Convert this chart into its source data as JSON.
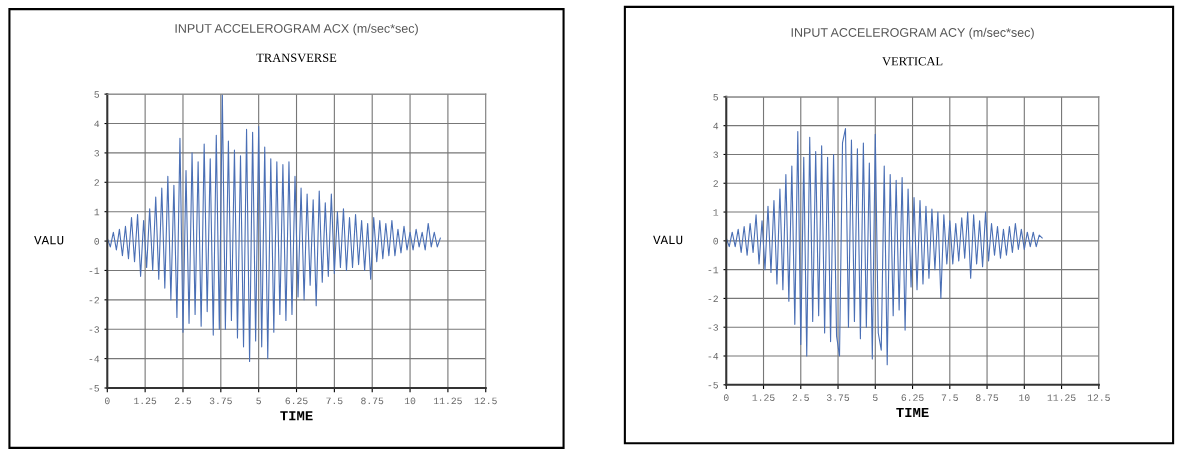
{
  "chart_data": [
    {
      "type": "line",
      "title": "INPUT ACCELEROGRAM ACX (m/sec*sec)",
      "subtitle": "TRANSVERSE",
      "xlabel": "TIME",
      "ylabel": "VALU",
      "xlim": [
        0,
        12.5
      ],
      "xticks": [
        0,
        1.25,
        2.5,
        3.75,
        5,
        6.25,
        7.5,
        8.75,
        10,
        11.25,
        12.5
      ],
      "ylim": [
        -5,
        5
      ],
      "yticks": [
        -5,
        -4,
        -3,
        -2,
        -1,
        0,
        1,
        2,
        3,
        4,
        5
      ],
      "grid": true,
      "marker": "none",
      "line_style": "solid",
      "x": [
        0.0,
        0.1,
        0.2,
        0.3,
        0.4,
        0.5,
        0.6,
        0.7,
        0.8,
        0.9,
        1.0,
        1.1,
        1.2,
        1.3,
        1.4,
        1.5,
        1.6,
        1.7,
        1.8,
        1.9,
        2.0,
        2.1,
        2.2,
        2.3,
        2.4,
        2.5,
        2.6,
        2.7,
        2.8,
        2.9,
        3.0,
        3.1,
        3.2,
        3.3,
        3.4,
        3.5,
        3.6,
        3.7,
        3.8,
        3.9,
        4.0,
        4.1,
        4.2,
        4.3,
        4.4,
        4.5,
        4.6,
        4.7,
        4.8,
        4.9,
        5.0,
        5.1,
        5.2,
        5.3,
        5.4,
        5.5,
        5.6,
        5.7,
        5.8,
        5.9,
        6.0,
        6.1,
        6.2,
        6.3,
        6.4,
        6.5,
        6.6,
        6.7,
        6.8,
        6.9,
        7.0,
        7.1,
        7.2,
        7.3,
        7.4,
        7.5,
        7.6,
        7.7,
        7.8,
        7.9,
        8.0,
        8.1,
        8.2,
        8.3,
        8.4,
        8.5,
        8.6,
        8.7,
        8.8,
        8.9,
        9.0,
        9.1,
        9.2,
        9.3,
        9.4,
        9.5,
        9.6,
        9.7,
        9.8,
        9.9,
        10.0,
        10.1,
        10.2,
        10.3,
        10.4,
        10.5,
        10.6,
        10.7,
        10.8,
        10.9,
        11.0
      ],
      "series": [
        {
          "color": "#4a6fb5",
          "values": [
            0.1,
            -0.2,
            0.3,
            -0.3,
            0.4,
            -0.5,
            0.5,
            -0.6,
            0.8,
            -0.7,
            0.9,
            -1.2,
            0.7,
            -0.9,
            1.1,
            -1.0,
            1.5,
            -1.3,
            1.8,
            -1.6,
            2.2,
            -2.0,
            1.9,
            -2.6,
            3.5,
            -3.1,
            2.4,
            -2.8,
            3.0,
            -2.5,
            2.7,
            -2.9,
            3.3,
            -2.4,
            2.8,
            -3.2,
            3.6,
            -3.0,
            5.0,
            -3.0,
            3.4,
            -2.7,
            3.1,
            -3.3,
            2.9,
            -3.6,
            3.8,
            -4.1,
            3.7,
            -3.4,
            3.9,
            -3.6,
            3.2,
            -4.0,
            2.8,
            -3.1,
            2.7,
            -2.5,
            2.6,
            -2.7,
            2.7,
            -2.5,
            2.2,
            -1.9,
            1.8,
            -2.0,
            1.6,
            -1.5,
            1.4,
            -2.2,
            1.7,
            -1.4,
            1.3,
            -1.2,
            1.6,
            -1.1,
            1.0,
            -0.9,
            1.1,
            -1.0,
            0.8,
            -0.9,
            0.9,
            -0.8,
            0.7,
            -1.0,
            0.6,
            -1.3,
            0.8,
            -0.7,
            0.7,
            -0.6,
            0.6,
            -0.5,
            0.7,
            -0.5,
            0.4,
            -0.4,
            0.5,
            -0.3,
            0.3,
            -0.3,
            0.4,
            -0.2,
            0.3,
            -0.3,
            0.6,
            -0.2,
            0.3,
            -0.2,
            0.1
          ]
        }
      ]
    },
    {
      "type": "line",
      "title": "INPUT ACCELEROGRAM ACY (m/sec*sec)",
      "subtitle": "VERTICAL",
      "xlabel": "TIME",
      "ylabel": "VALU",
      "xlim": [
        0,
        12.5
      ],
      "xticks": [
        0,
        1.25,
        2.5,
        3.75,
        5,
        6.25,
        7.5,
        8.75,
        10,
        11.25,
        12.5
      ],
      "ylim": [
        -5,
        5
      ],
      "yticks": [
        -5,
        -4,
        -3,
        -2,
        -1,
        0,
        1,
        2,
        3,
        4,
        5
      ],
      "grid": true,
      "marker": "none",
      "line_style": "solid",
      "x": [
        0.0,
        0.1,
        0.2,
        0.3,
        0.4,
        0.5,
        0.6,
        0.7,
        0.8,
        0.9,
        1.0,
        1.1,
        1.2,
        1.3,
        1.4,
        1.5,
        1.6,
        1.7,
        1.8,
        1.9,
        2.0,
        2.1,
        2.2,
        2.3,
        2.4,
        2.5,
        2.6,
        2.7,
        2.8,
        2.9,
        3.0,
        3.1,
        3.2,
        3.3,
        3.4,
        3.5,
        3.6,
        3.7,
        3.8,
        3.9,
        4.0,
        4.1,
        4.2,
        4.3,
        4.4,
        4.5,
        4.6,
        4.7,
        4.8,
        4.9,
        5.0,
        5.1,
        5.2,
        5.3,
        5.4,
        5.5,
        5.6,
        5.7,
        5.8,
        5.9,
        6.0,
        6.1,
        6.2,
        6.3,
        6.4,
        6.5,
        6.6,
        6.7,
        6.8,
        6.9,
        7.0,
        7.1,
        7.2,
        7.3,
        7.4,
        7.5,
        7.6,
        7.7,
        7.8,
        7.9,
        8.0,
        8.1,
        8.2,
        8.3,
        8.4,
        8.5,
        8.6,
        8.7,
        8.8,
        8.9,
        9.0,
        9.1,
        9.2,
        9.3,
        9.4,
        9.5,
        9.6,
        9.7,
        9.8,
        9.9,
        10.0,
        10.1,
        10.2,
        10.3,
        10.4,
        10.5,
        10.6
      ],
      "series": [
        {
          "color": "#4a6fb5",
          "values": [
            0.1,
            -0.2,
            0.3,
            -0.2,
            0.4,
            -0.4,
            0.5,
            -0.5,
            0.6,
            -0.4,
            0.9,
            -0.8,
            0.7,
            -1.0,
            1.2,
            -1.1,
            1.4,
            -1.5,
            1.8,
            -1.7,
            2.3,
            -2.1,
            2.6,
            -2.9,
            3.8,
            -3.6,
            2.9,
            -4.0,
            3.6,
            -2.8,
            3.1,
            -2.6,
            3.3,
            -3.2,
            2.9,
            -3.5,
            3.0,
            -3.3,
            -4.0,
            3.4,
            3.9,
            -3.0,
            3.5,
            -2.8,
            3.2,
            -3.4,
            3.4,
            -3.0,
            2.7,
            -4.1,
            3.7,
            -3.2,
            -3.8,
            2.6,
            -4.3,
            2.3,
            -2.6,
            2.1,
            -2.4,
            2.2,
            -3.1,
            1.8,
            -1.6,
            1.5,
            -1.7,
            1.4,
            -1.5,
            1.2,
            -1.3,
            1.1,
            -1.0,
            1.0,
            -2.0,
            0.9,
            -0.8,
            0.7,
            -0.8,
            0.6,
            -0.7,
            0.8,
            -0.6,
            1.0,
            -1.3,
            0.9,
            -0.8,
            0.7,
            -0.9,
            1.0,
            -0.7,
            0.6,
            -0.5,
            0.5,
            -0.6,
            0.4,
            -0.5,
            0.5,
            -0.4,
            0.6,
            -0.3,
            0.4,
            -0.3,
            0.3,
            -0.2,
            0.3,
            -0.2,
            0.2,
            0.1
          ]
        }
      ]
    }
  ]
}
